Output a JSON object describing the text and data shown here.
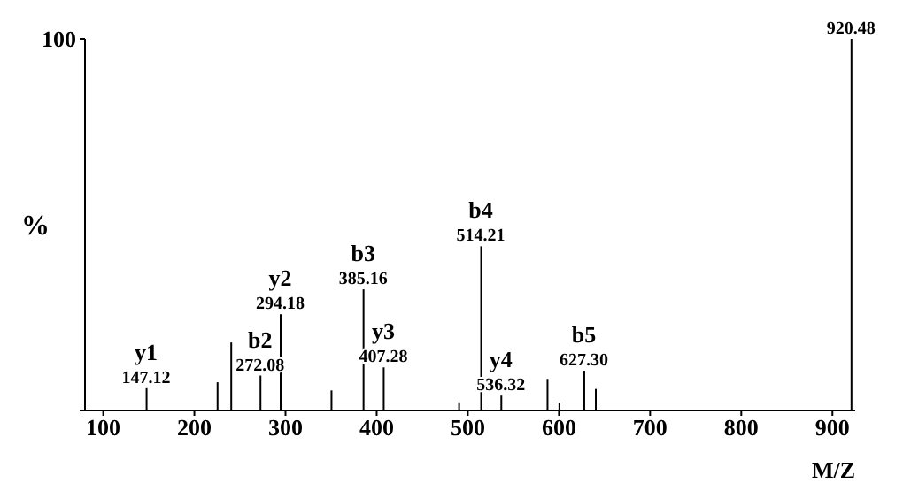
{
  "chart_data": {
    "type": "bar",
    "xlabel": "M/Z",
    "ylabel": "%",
    "x": [
      147.12,
      225,
      240,
      272.08,
      294.18,
      350,
      385.16,
      407.28,
      490,
      514.21,
      536.32,
      587,
      600,
      627.3,
      640,
      920.48
    ],
    "values": [
      6,
      7.6,
      18.3,
      9.4,
      25.9,
      5.4,
      32.6,
      11.6,
      2.2,
      44.2,
      4,
      8.5,
      2,
      10.7,
      5.8,
      100
    ],
    "annotations": [
      {
        "text": "y1",
        "x": 147.12,
        "y": 6
      },
      {
        "text": "147.12",
        "x": 147.12,
        "y": 6
      },
      {
        "text": "b2",
        "x": 272.08,
        "y": 9.4
      },
      {
        "text": "272.08",
        "x": 272.08,
        "y": 9.4
      },
      {
        "text": "y2",
        "x": 294.18,
        "y": 25.9
      },
      {
        "text": "294.18",
        "x": 294.18,
        "y": 25.9
      },
      {
        "text": "b3",
        "x": 385.16,
        "y": 32.6
      },
      {
        "text": "385.16",
        "x": 385.16,
        "y": 32.6
      },
      {
        "text": "y3",
        "x": 407.28,
        "y": 11.6
      },
      {
        "text": "407.28",
        "x": 407.28,
        "y": 11.6
      },
      {
        "text": "b4",
        "x": 514.21,
        "y": 44.2
      },
      {
        "text": "514.21",
        "x": 514.21,
        "y": 44.2
      },
      {
        "text": "y4",
        "x": 536.32,
        "y": 4
      },
      {
        "text": "536.32",
        "x": 536.32,
        "y": 4
      },
      {
        "text": "b5",
        "x": 627.3,
        "y": 10.7
      },
      {
        "text": "627.30",
        "x": 627.3,
        "y": 10.7
      },
      {
        "text": "920.48",
        "x": 920.48,
        "y": 100
      }
    ],
    "color": "#000000",
    "xlim": [
      80,
      925
    ],
    "xticks": [
      100,
      200,
      300,
      400,
      500,
      600,
      700,
      800,
      900
    ],
    "ylim": [
      0,
      100
    ],
    "yticks": [
      {
        "value": 0,
        "label": null
      },
      100
    ]
  }
}
